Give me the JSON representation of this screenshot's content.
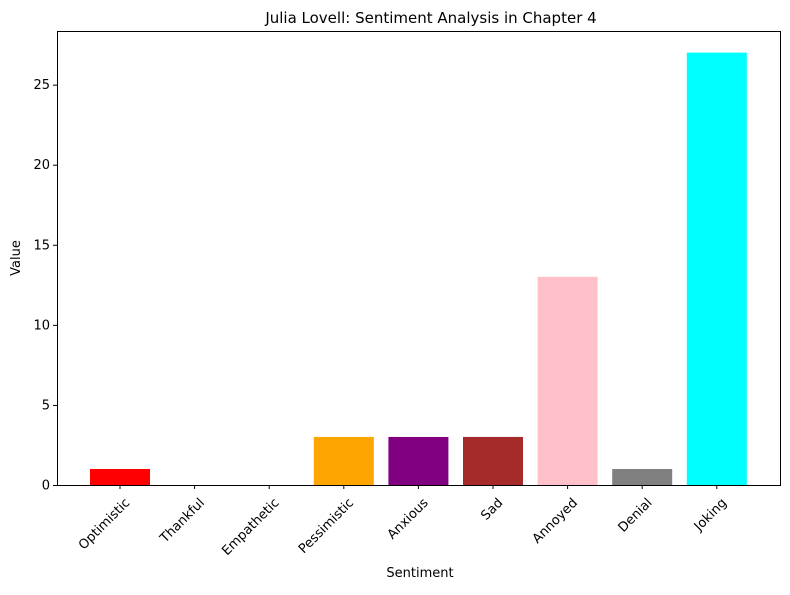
{
  "chart_data": {
    "type": "bar",
    "title": "Julia Lovell: Sentiment Analysis in Chapter 4",
    "xlabel": "Sentiment",
    "ylabel": "Value",
    "categories": [
      "Optimistic",
      "Thankful",
      "Empathetic",
      "Pessimistic",
      "Anxious",
      "Sad",
      "Annoyed",
      "Denial",
      "Joking"
    ],
    "values": [
      1,
      0,
      0,
      3,
      3,
      3,
      13,
      1,
      27
    ],
    "colors": [
      "#ff0000",
      "#008000",
      "#0000ff",
      "#ffa500",
      "#800080",
      "#a52a2a",
      "#ffc0cb",
      "#808080",
      "#00ffff"
    ],
    "ylim": [
      0,
      28.35
    ],
    "yticks": [
      0,
      5,
      10,
      15,
      20,
      25
    ],
    "grid": false,
    "legend": null
  }
}
